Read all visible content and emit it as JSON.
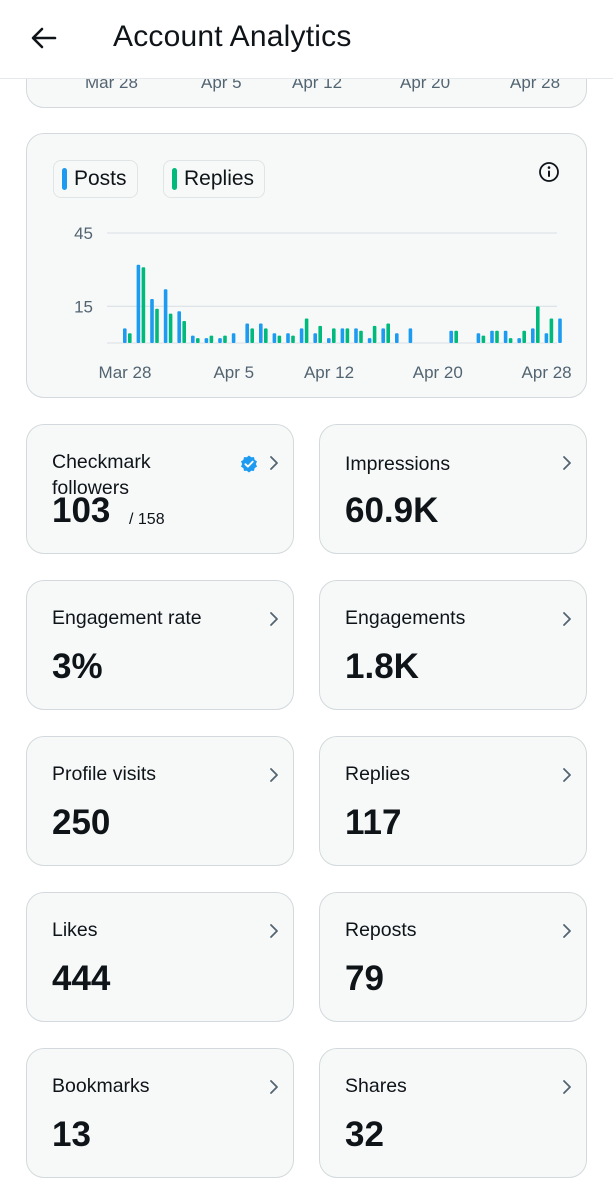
{
  "header": {
    "title": "Account Analytics"
  },
  "previous_chart": {
    "ticks": [
      "Mar 28",
      "Apr 5",
      "Apr 12",
      "Apr 20",
      "Apr 28"
    ]
  },
  "legend": [
    {
      "label": "Posts",
      "color": "#1d9bf0"
    },
    {
      "label": "Replies",
      "color": "#00ba7c"
    }
  ],
  "chart_data": {
    "type": "bar",
    "legend_placement": "top-left",
    "grid": true,
    "ylim": [
      0,
      45
    ],
    "yticks": [
      15,
      45
    ],
    "xticks": [
      "Mar 28",
      "Apr 5",
      "Apr 12",
      "Apr 20",
      "Apr 28"
    ],
    "categories": [
      "Mar 28",
      "Mar 29",
      "Mar 30",
      "Mar 31",
      "Apr 1",
      "Apr 2",
      "Apr 3",
      "Apr 4",
      "Apr 5",
      "Apr 6",
      "Apr 7",
      "Apr 8",
      "Apr 9",
      "Apr 10",
      "Apr 11",
      "Apr 12",
      "Apr 13",
      "Apr 14",
      "Apr 15",
      "Apr 16",
      "Apr 17",
      "Apr 18",
      "Apr 19",
      "Apr 20",
      "Apr 21",
      "Apr 22",
      "Apr 23",
      "Apr 24",
      "Apr 25",
      "Apr 26",
      "Apr 27",
      "Apr 28",
      "Apr 29"
    ],
    "series": [
      {
        "name": "Posts",
        "color": "#1d9bf0",
        "values": [
          6,
          32,
          18,
          22,
          13,
          3,
          2,
          2,
          4,
          8,
          8,
          4,
          4,
          6,
          4,
          2,
          6,
          6,
          2,
          6,
          4,
          6,
          0,
          0,
          5,
          0,
          4,
          5,
          5,
          2,
          6,
          4,
          10
        ]
      },
      {
        "name": "Replies",
        "color": "#00ba7c",
        "values": [
          4,
          31,
          14,
          12,
          9,
          2,
          3,
          3,
          0,
          6,
          6,
          3,
          3,
          10,
          7,
          6,
          6,
          5,
          7,
          8,
          0,
          0,
          0,
          0,
          5,
          0,
          3,
          5,
          2,
          5,
          15,
          10,
          0
        ]
      }
    ]
  },
  "stats": [
    {
      "label": "Checkmark followers",
      "value": "103",
      "sub": "/ 158",
      "verified": true
    },
    {
      "label": "Impressions",
      "value": "60.9K"
    },
    {
      "label": "Engagement rate",
      "value": "3%"
    },
    {
      "label": "Engagements",
      "value": "1.8K"
    },
    {
      "label": "Profile visits",
      "value": "250"
    },
    {
      "label": "Replies",
      "value": "117"
    },
    {
      "label": "Likes",
      "value": "444"
    },
    {
      "label": "Reposts",
      "value": "79"
    },
    {
      "label": "Bookmarks",
      "value": "13"
    },
    {
      "label": "Shares",
      "value": "32"
    }
  ]
}
